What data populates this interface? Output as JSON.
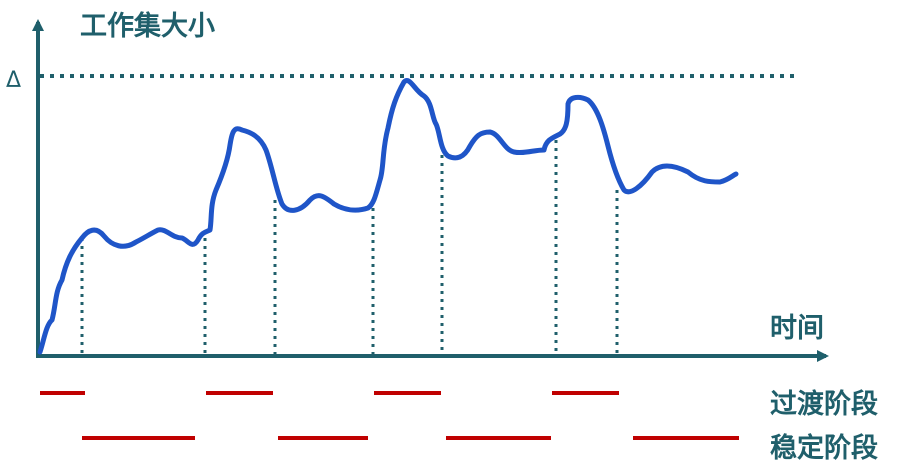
{
  "labels": {
    "y_axis": "工作集大小",
    "x_axis": "时间",
    "delta": "Δ",
    "legend_transition": "过渡阶段",
    "legend_stable": "稳定阶段"
  },
  "colors": {
    "axis": "#1f5f6b",
    "curve": "#1f55c8",
    "phase_bar": "#c00000",
    "text": "#1f5f6b"
  },
  "phases": {
    "transition_count": 4,
    "stable_count": 4
  }
}
